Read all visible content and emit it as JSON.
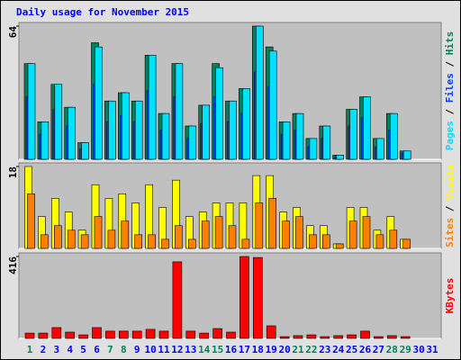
{
  "chart_data": [
    {
      "type": "bar",
      "title": "Daily usage for November 2015",
      "ylim": [
        0,
        64
      ],
      "yticks": [
        64
      ],
      "legend_separator": " / ",
      "series": [
        {
          "name": "Hits",
          "color": "#00805c",
          "values": [
            46,
            18,
            36,
            25,
            8,
            56,
            28,
            32,
            28,
            50,
            22,
            46,
            16,
            26,
            46,
            28,
            34,
            64,
            54,
            18,
            22,
            10,
            16,
            2,
            24,
            30,
            10,
            22,
            4,
            0,
            0
          ]
        },
        {
          "name": "Files",
          "color": "#0040ff",
          "values": [
            30,
            12,
            24,
            16,
            5,
            36,
            18,
            21,
            18,
            33,
            14,
            30,
            10,
            17,
            30,
            18,
            22,
            42,
            35,
            12,
            14,
            6,
            10,
            1,
            16,
            20,
            6,
            14,
            3,
            0,
            0
          ]
        },
        {
          "name": "Pages",
          "color": "#00e0ff",
          "values": [
            46,
            18,
            36,
            25,
            8,
            54,
            28,
            32,
            28,
            50,
            22,
            46,
            16,
            26,
            44,
            28,
            34,
            64,
            52,
            18,
            22,
            10,
            16,
            2,
            24,
            30,
            10,
            22,
            4,
            0,
            0
          ]
        }
      ]
    },
    {
      "type": "bar",
      "ylim": [
        0,
        18
      ],
      "yticks": [
        18
      ],
      "legend_separator": " / ",
      "series": [
        {
          "name": "Visits",
          "color": "#ffff00",
          "values": [
            18,
            7,
            11,
            8,
            4,
            14,
            11,
            12,
            10,
            14,
            9,
            15,
            7,
            8,
            10,
            10,
            10,
            16,
            16,
            8,
            9,
            5,
            5,
            1,
            9,
            9,
            4,
            7,
            2,
            0,
            0
          ]
        },
        {
          "name": "Sites",
          "color": "#ff8000",
          "values": [
            12,
            3,
            5,
            4,
            3,
            7,
            4,
            6,
            3,
            3,
            2,
            5,
            2,
            6,
            7,
            5,
            2,
            10,
            11,
            6,
            7,
            3,
            3,
            1,
            6,
            7,
            3,
            4,
            2,
            0,
            0
          ]
        }
      ]
    },
    {
      "type": "bar",
      "ylim": [
        0,
        416
      ],
      "yticks": [
        416
      ],
      "categories": [
        "1",
        "2",
        "3",
        "4",
        "5",
        "6",
        "7",
        "8",
        "9",
        "10",
        "11",
        "12",
        "13",
        "14",
        "15",
        "16",
        "17",
        "18",
        "19",
        "20",
        "21",
        "22",
        "23",
        "24",
        "25",
        "26",
        "27",
        "28",
        "29",
        "30",
        "31"
      ],
      "category_colors": [
        "#00805c",
        "#0000ff",
        "#0000ff",
        "#0000ff",
        "#0000ff",
        "#0000ff",
        "#00805c",
        "#00805c",
        "#0000ff",
        "#0000ff",
        "#0000ff",
        "#0000ff",
        "#0000ff",
        "#00805c",
        "#00805c",
        "#0000ff",
        "#0000ff",
        "#0000ff",
        "#0000ff",
        "#0000ff",
        "#00805c",
        "#00805c",
        "#0000ff",
        "#0000ff",
        "#0000ff",
        "#0000ff",
        "#0000ff",
        "#00805c",
        "#00805c",
        "#0000ff",
        "#0000ff"
      ],
      "series": [
        {
          "name": "KBytes",
          "color": "#ff0000",
          "values": [
            27,
            27,
            55,
            32,
            18,
            55,
            37,
            37,
            37,
            46,
            37,
            389,
            37,
            27,
            50,
            32,
            416,
            411,
            64,
            9,
            14,
            18,
            9,
            14,
            18,
            37,
            9,
            14,
            9,
            0,
            0
          ]
        }
      ]
    }
  ]
}
